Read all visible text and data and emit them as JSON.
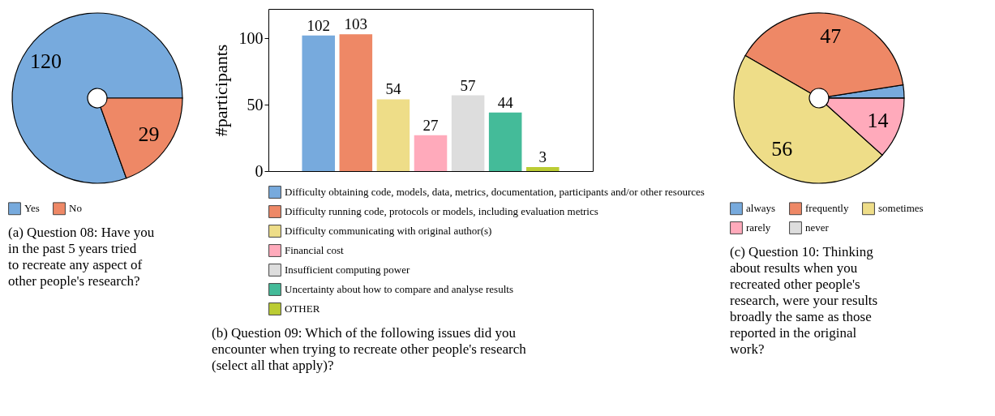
{
  "chart_data": [
    {
      "type": "pie",
      "title": "(a) Question 08: Have you in the past 5 years tried to recreate any aspect of other people's research?",
      "categories": [
        "Yes",
        "No"
      ],
      "values": [
        120,
        29
      ],
      "colors": [
        "#77aadd",
        "#ee8866"
      ],
      "data_labels": true,
      "legend": "bottom"
    },
    {
      "type": "bar",
      "title": "(b) Question 09: Which of the following issues did you encounter when trying to recreate other people's research (select all that apply)?",
      "ylabel": "#participants",
      "categories": [
        null,
        null,
        null,
        null,
        null,
        null,
        null
      ],
      "series": [
        {
          "name": "Difficulty obtaining code, models, data, metrics, documentation, participants and/or other resources",
          "color": "#77aadd",
          "values": [
            102,
            null,
            null,
            null,
            null,
            null,
            null
          ]
        },
        {
          "name": "Difficulty running code, protocols or models, including evaluation metrics",
          "color": "#ee8866",
          "values": [
            null,
            103,
            null,
            null,
            null,
            null,
            null
          ]
        },
        {
          "name": "Difficulty communicating with original author(s)",
          "color": "#eedd88",
          "values": [
            null,
            null,
            54,
            null,
            null,
            null,
            null
          ]
        },
        {
          "name": "Financial cost",
          "color": "#ffaabb",
          "values": [
            null,
            null,
            null,
            27,
            null,
            null,
            null
          ]
        },
        {
          "name": "Insufficient computing power",
          "color": "#dddddd",
          "values": [
            null,
            null,
            null,
            null,
            57,
            null,
            null
          ]
        },
        {
          "name": "Uncertainty about how to compare and analyse results",
          "color": "#44bb99",
          "values": [
            null,
            null,
            null,
            null,
            null,
            44,
            null
          ]
        },
        {
          "name": "OTHER",
          "color": "#bbcc33",
          "values": [
            null,
            null,
            null,
            null,
            null,
            null,
            3
          ]
        }
      ],
      "stacked": true,
      "ylim": [
        0,
        122
      ],
      "yticks": [
        0,
        50,
        100
      ],
      "data_labels": true,
      "legend": "bottom",
      "tick_labels": "y"
    },
    {
      "type": "pie",
      "title": "(c) Question 10: Thinking about results when you recreated other people's research, were your results broadly the same as those reported in the original work?",
      "categories": [
        "always",
        "frequently",
        "sometimes",
        "rarely",
        "never"
      ],
      "values": [
        3,
        47,
        56,
        14,
        0
      ],
      "colors": [
        "#77aadd",
        "#ee8866",
        "#eedd88",
        "#ffaabb",
        "#dddddd"
      ],
      "value_labels": [
        null,
        "47",
        "56",
        "14",
        null
      ],
      "legend": "bottom"
    }
  ]
}
